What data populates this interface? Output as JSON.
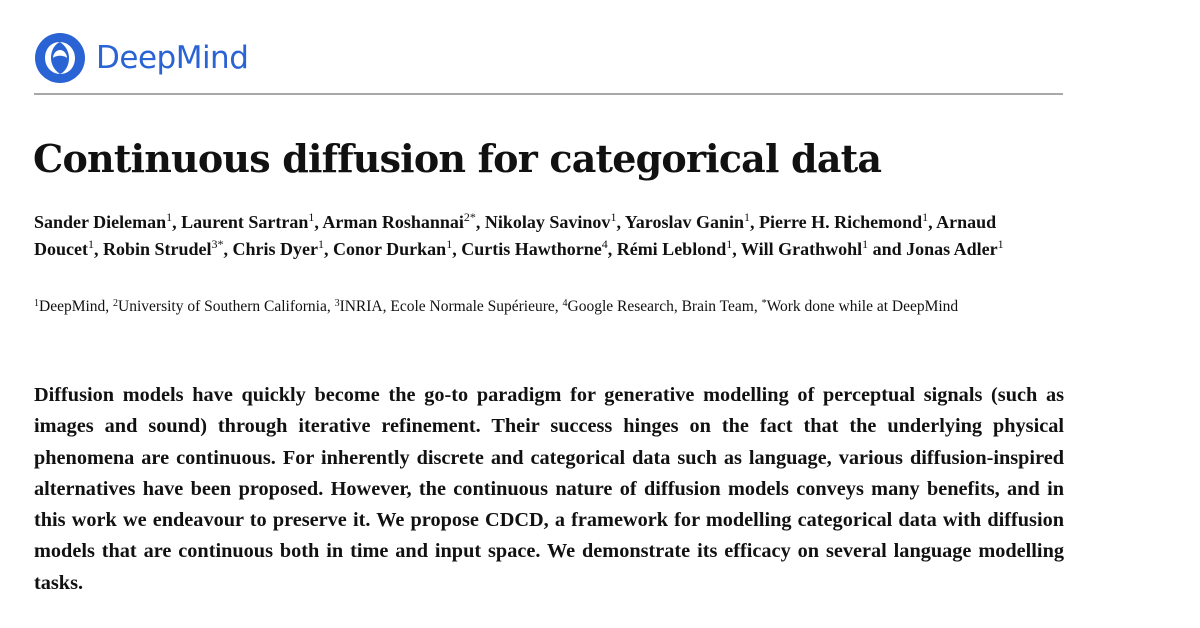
{
  "logo": {
    "text": "DeepMind",
    "color": "#2a63d4"
  },
  "title": "Continuous diffusion for categorical data",
  "authors": [
    {
      "name": "Sander Dieleman",
      "sup": "1"
    },
    {
      "name": "Laurent Sartran",
      "sup": "1"
    },
    {
      "name": "Arman Roshannai",
      "sup": "2*"
    },
    {
      "name": "Nikolay Savinov",
      "sup": "1"
    },
    {
      "name": "Yaroslav Ganin",
      "sup": "1"
    },
    {
      "name": "Pierre H. Richemond",
      "sup": "1"
    },
    {
      "name": "Arnaud Doucet",
      "sup": "1"
    },
    {
      "name": "Robin Strudel",
      "sup": "3*"
    },
    {
      "name": "Chris Dyer",
      "sup": "1"
    },
    {
      "name": "Conor Durkan",
      "sup": "1"
    },
    {
      "name": "Curtis Hawthorne",
      "sup": "4"
    },
    {
      "name": "Rémi Leblond",
      "sup": "1"
    },
    {
      "name": "Will Grathwohl",
      "sup": "1"
    },
    {
      "name": "Jonas Adler",
      "sup": "1"
    }
  ],
  "affiliations": [
    {
      "sup": "1",
      "text": "DeepMind"
    },
    {
      "sup": "2",
      "text": "University of Southern California"
    },
    {
      "sup": "3",
      "text": "INRIA, Ecole Normale Supérieure"
    },
    {
      "sup": "4",
      "text": "Google Research, Brain Team"
    },
    {
      "sup": "*",
      "text": "Work done while at DeepMind"
    }
  ],
  "abstract": "Diffusion models have quickly become the go-to paradigm for generative modelling of perceptual signals (such as images and sound) through iterative refinement.  Their success hinges on the fact that the underlying physical phenomena are continuous.  For inherently discrete and categorical data such as language, various diffusion-inspired alternatives have been proposed. However, the continuous nature of diffusion models conveys many benefits, and in this work we endeavour to preserve it. We propose CDCD, a framework for modelling categorical data with diffusion models that are continuous both in time and input space. We demonstrate its efficacy on several language modelling tasks."
}
